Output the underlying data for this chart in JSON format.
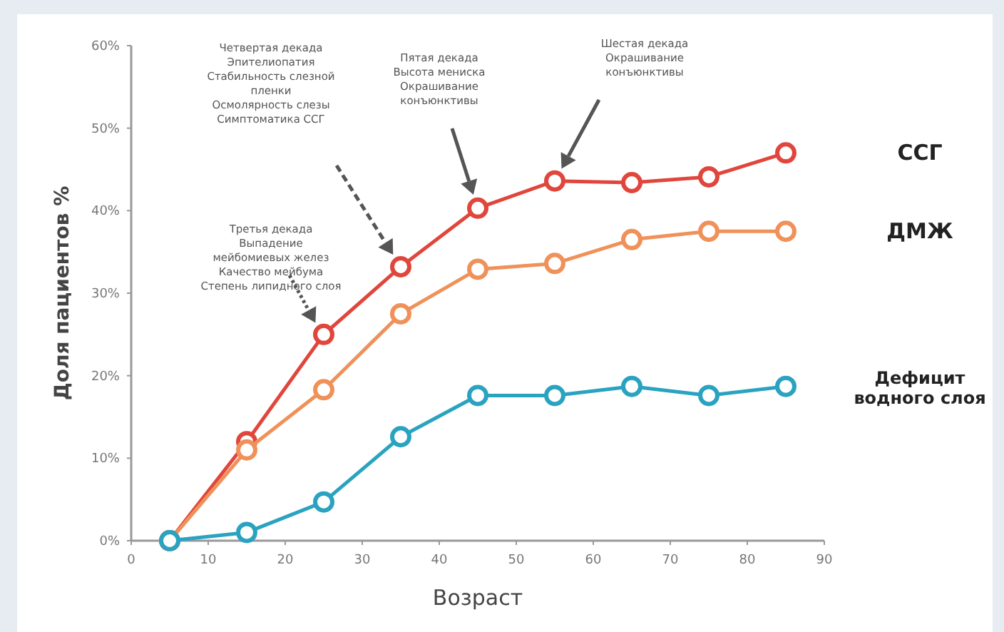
{
  "chart_data": {
    "type": "line",
    "xlabel": "Возраст",
    "ylabel": "Доля пациентов %",
    "x": [
      5,
      15,
      25,
      35,
      45,
      55,
      65,
      75,
      85
    ],
    "xlim": [
      0,
      90
    ],
    "xticks": [
      0,
      10,
      20,
      30,
      40,
      50,
      60,
      70,
      80,
      90
    ],
    "ylim": [
      0,
      60
    ],
    "yticks": [
      {
        "value": 0,
        "label": "0%"
      },
      {
        "value": 10,
        "label": "10%"
      },
      {
        "value": 20,
        "label": "20%"
      },
      {
        "value": 30,
        "label": "30%"
      },
      {
        "value": 40,
        "label": "40%"
      },
      {
        "value": 50,
        "label": "50%"
      },
      {
        "value": 60,
        "label": "60%"
      }
    ],
    "series": [
      {
        "name": "ССГ",
        "color": "#e0463c",
        "values": [
          0,
          12,
          25,
          33.2,
          40.3,
          43.6,
          43.4,
          44.1,
          47
        ]
      },
      {
        "name": "ДМЖ",
        "color": "#f0915a",
        "values": [
          0,
          11,
          18.3,
          27.5,
          32.9,
          33.6,
          36.5,
          37.5,
          37.5
        ]
      },
      {
        "name": "Дефицит\nводного слоя",
        "color": "#2aa3c0",
        "values": [
          0,
          1,
          4.7,
          12.6,
          17.6,
          17.6,
          18.7,
          17.6,
          18.7
        ]
      }
    ],
    "marker": "circle",
    "line_style": "solid",
    "grid": false,
    "annotations": [
      "Третья декада\nВыпадение\nмейбомиевых желез\nКачество мейбума\nСтепень липидного слоя",
      "Четвертая декада\nЭпителиопатия\nСтабильность слезной\nпленки\nОсмолярность слезы\nСимптоматика ССГ",
      "Пятая декада\nВысота мениска\nОкрашивание\nконъюнктивы",
      "Шестая декада\nОкрашивание\nконъюнктивы"
    ]
  }
}
